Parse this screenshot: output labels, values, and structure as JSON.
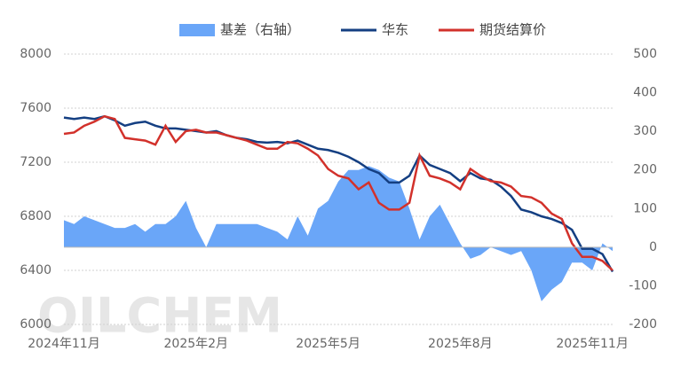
{
  "chart_data": {
    "type": "line",
    "watermark": "OILCHEM",
    "categories": [
      "2024年11月",
      null,
      null,
      null,
      null,
      null,
      null,
      null,
      null,
      null,
      null,
      null,
      null,
      "2025年2月",
      null,
      null,
      null,
      null,
      null,
      null,
      null,
      null,
      null,
      null,
      null,
      null,
      "2025年5月",
      null,
      null,
      null,
      null,
      null,
      null,
      null,
      null,
      null,
      null,
      null,
      null,
      "2025年8月",
      null,
      null,
      null,
      null,
      null,
      null,
      null,
      null,
      null,
      null,
      null,
      null,
      "2025年11月",
      null,
      null
    ],
    "series": [
      {
        "name": "基差（右轴）",
        "kind": "area",
        "axis": "y2",
        "color": "#6aa6f8",
        "values": [
          70,
          60,
          80,
          70,
          60,
          50,
          50,
          60,
          40,
          60,
          60,
          80,
          120,
          50,
          0,
          60,
          60,
          60,
          60,
          60,
          50,
          40,
          20,
          80,
          30,
          100,
          120,
          170,
          200,
          200,
          210,
          200,
          180,
          170,
          100,
          20,
          80,
          110,
          60,
          10,
          -30,
          -20,
          0,
          -10,
          -20,
          -10,
          -60,
          -140,
          -110,
          -90,
          -40,
          -40,
          -60,
          10,
          -10
        ]
      },
      {
        "name": "华东",
        "kind": "line",
        "color": "#143f82",
        "values": [
          7530,
          7520,
          7530,
          7520,
          7540,
          7510,
          7470,
          7490,
          7500,
          7470,
          7450,
          7450,
          7440,
          7430,
          7420,
          7430,
          7400,
          7380,
          7370,
          7350,
          7345,
          7350,
          7340,
          7360,
          7330,
          7300,
          7290,
          7270,
          7240,
          7200,
          7150,
          7120,
          7050,
          7050,
          7100,
          7250,
          7180,
          7150,
          7120,
          7060,
          7120,
          7080,
          7070,
          7020,
          6950,
          6850,
          6830,
          6800,
          6780,
          6750,
          6700,
          6560,
          6560,
          6520,
          6390
        ]
      },
      {
        "name": "期货结算价",
        "kind": "line",
        "color": "#d2312b",
        "values": [
          7410,
          7420,
          7470,
          7500,
          7540,
          7520,
          7380,
          7370,
          7360,
          7330,
          7470,
          7350,
          7430,
          7440,
          7420,
          7420,
          7400,
          7380,
          7360,
          7330,
          7300,
          7300,
          7350,
          7340,
          7300,
          7250,
          7150,
          7100,
          7080,
          7000,
          7050,
          6900,
          6850,
          6850,
          6900,
          7250,
          7100,
          7080,
          7050,
          7000,
          7150,
          7100,
          7060,
          7050,
          7020,
          6950,
          6940,
          6900,
          6820,
          6780,
          6600,
          6500,
          6500,
          6470,
          6400
        ]
      }
    ],
    "ylim": [
      6000,
      8000
    ],
    "yticks": [
      6000,
      6400,
      6800,
      7200,
      7600,
      8000
    ],
    "y2lim": [
      -200,
      500
    ],
    "y2ticks": [
      -200,
      -100,
      0,
      100,
      200,
      300,
      400,
      500
    ],
    "grid": true
  }
}
